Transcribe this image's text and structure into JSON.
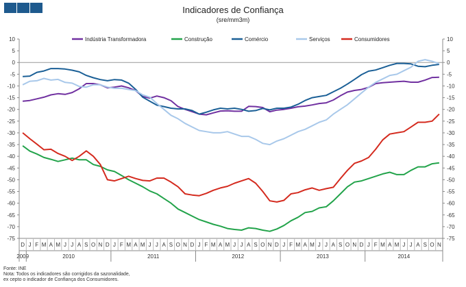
{
  "header": {
    "title": "Indicadores de Confiança",
    "subtitle": "(sre/mm3m)"
  },
  "footer": {
    "source": "Fonte: INE",
    "note_line1": "Nota: Todos os indicadores são corrigidos da sazonalidade,",
    "note_line2": "ex cepto o indicador de Confiança dos Consumidores."
  },
  "chart_data": {
    "type": "line",
    "title": "Indicadores de Confiança",
    "subtitle": "(sre/mm3m)",
    "ylim": [
      -75,
      10
    ],
    "yticks": [
      10,
      5,
      0,
      -5,
      -10,
      -15,
      -20,
      -25,
      -30,
      -35,
      -40,
      -45,
      -50,
      -55,
      -60,
      -65,
      -70,
      -75
    ],
    "grid": false,
    "legend_position": "top",
    "months": [
      "D",
      "J",
      "F",
      "M",
      "A",
      "M",
      "J",
      "J",
      "A",
      "S",
      "O",
      "N",
      "D",
      "J",
      "F",
      "M",
      "A",
      "M",
      "J",
      "J",
      "A",
      "S",
      "O",
      "N",
      "D",
      "J",
      "F",
      "M",
      "A",
      "M",
      "J",
      "J",
      "A",
      "S",
      "O",
      "N",
      "D",
      "J",
      "F",
      "M",
      "A",
      "M",
      "J",
      "J",
      "A",
      "S",
      "O",
      "N",
      "D",
      "J",
      "F",
      "M",
      "A",
      "M",
      "J",
      "J",
      "A",
      "S",
      "O",
      "N"
    ],
    "years": [
      {
        "label": "2009",
        "start": 0,
        "end": 0
      },
      {
        "label": "2010",
        "start": 1,
        "end": 12
      },
      {
        "label": "2011",
        "start": 13,
        "end": 24
      },
      {
        "label": "2012",
        "start": 25,
        "end": 36
      },
      {
        "label": "2013",
        "start": 37,
        "end": 48
      },
      {
        "label": "2014",
        "start": 49,
        "end": 59
      }
    ],
    "series": [
      {
        "name": "Indústria Transformadora",
        "color": "#7030a0",
        "values": [
          -16.5,
          -16.2,
          -15.5,
          -14.8,
          -13.8,
          -13.3,
          -13.6,
          -12.8,
          -11.2,
          -9.0,
          -9.0,
          -9.5,
          -10.8,
          -10.5,
          -10.0,
          -10.8,
          -12.0,
          -14.5,
          -15.2,
          -14.3,
          -15.0,
          -16.3,
          -18.8,
          -20.0,
          -21.0,
          -22.0,
          -22.3,
          -21.5,
          -20.7,
          -20.6,
          -20.8,
          -20.8,
          -18.7,
          -18.8,
          -19.2,
          -21.0,
          -20.3,
          -20.0,
          -19.5,
          -18.9,
          -18.6,
          -18.1,
          -17.5,
          -17.2,
          -16.0,
          -14.2,
          -12.6,
          -11.9,
          -11.5,
          -10.6,
          -9.0,
          -8.6,
          -8.4,
          -8.2,
          -8.0,
          -8.4,
          -8.4,
          -7.5,
          -6.4,
          -6.3
        ]
      },
      {
        "name": "Construção",
        "color": "#22a34a",
        "values": [
          -35.5,
          -37.8,
          -39.0,
          -40.5,
          -41.3,
          -42.2,
          -41.5,
          -40.8,
          -41.5,
          -41.5,
          -43.5,
          -44.3,
          -45.8,
          -46.5,
          -48.2,
          -50.0,
          -51.5,
          -53.0,
          -54.8,
          -56.0,
          -58.0,
          -60.0,
          -62.5,
          -64.0,
          -65.5,
          -67.0,
          -68.0,
          -69.0,
          -69.8,
          -70.8,
          -71.2,
          -71.5,
          -70.5,
          -70.8,
          -71.5,
          -72.0,
          -71.0,
          -69.5,
          -67.5,
          -66.0,
          -64.0,
          -63.5,
          -62.0,
          -61.5,
          -59.0,
          -56.0,
          -53.0,
          -51.0,
          -50.5,
          -49.5,
          -48.5,
          -47.5,
          -46.8,
          -47.8,
          -47.8,
          -46.0,
          -44.5,
          -44.5,
          -43.2,
          -42.8
        ]
      },
      {
        "name": "Comércio",
        "color": "#1a5f96",
        "values": [
          -6.0,
          -5.8,
          -4.2,
          -3.6,
          -2.6,
          -2.6,
          -2.8,
          -3.3,
          -4.0,
          -5.5,
          -6.5,
          -7.3,
          -7.8,
          -7.3,
          -7.5,
          -8.8,
          -11.5,
          -14.8,
          -16.5,
          -18.2,
          -18.8,
          -19.5,
          -19.8,
          -19.8,
          -20.5,
          -22.0,
          -21.2,
          -20.2,
          -19.5,
          -19.8,
          -19.5,
          -20.0,
          -20.8,
          -20.5,
          -19.6,
          -20.2,
          -19.5,
          -19.5,
          -19.0,
          -17.8,
          -16.2,
          -15.0,
          -14.5,
          -14.0,
          -12.5,
          -11.0,
          -9.2,
          -7.2,
          -5.2,
          -3.7,
          -3.2,
          -2.2,
          -1.2,
          -0.4,
          -0.4,
          -0.6,
          -1.6,
          -1.8,
          -1.2,
          -0.8
        ]
      },
      {
        "name": "Serviços",
        "color": "#a8c8ea",
        "values": [
          -9.5,
          -8.0,
          -7.8,
          -6.8,
          -7.5,
          -7.2,
          -8.5,
          -8.8,
          -10.2,
          -10.5,
          -9.5,
          -9.5,
          -10.5,
          -11.0,
          -11.0,
          -11.5,
          -12.0,
          -13.8,
          -14.8,
          -17.5,
          -20.0,
          -22.5,
          -24.0,
          -26.0,
          -27.5,
          -29.0,
          -29.5,
          -30.0,
          -30.0,
          -29.5,
          -30.5,
          -31.5,
          -31.5,
          -32.8,
          -34.5,
          -35.0,
          -33.5,
          -32.5,
          -31.0,
          -29.5,
          -28.5,
          -27.0,
          -25.5,
          -24.5,
          -22.0,
          -20.0,
          -18.0,
          -15.5,
          -13.0,
          -10.5,
          -8.5,
          -7.0,
          -5.5,
          -5.0,
          -3.5,
          -2.0,
          0.5,
          1.2,
          0.5,
          -0.5
        ]
      },
      {
        "name": "Consumidores",
        "color": "#d42a1e",
        "values": [
          -30.0,
          -32.5,
          -34.8,
          -37.2,
          -37.0,
          -38.8,
          -40.0,
          -41.8,
          -40.0,
          -37.7,
          -40.0,
          -43.5,
          -50.0,
          -50.5,
          -49.5,
          -48.5,
          -49.5,
          -50.3,
          -50.5,
          -49.3,
          -49.3,
          -51.0,
          -53.0,
          -56.0,
          -56.5,
          -56.8,
          -55.8,
          -54.5,
          -53.5,
          -52.8,
          -51.5,
          -50.5,
          -49.5,
          -51.5,
          -55.0,
          -59.0,
          -59.5,
          -58.8,
          -56.0,
          -55.5,
          -54.3,
          -53.5,
          -54.5,
          -53.8,
          -53.2,
          -49.5,
          -46.0,
          -43.0,
          -42.0,
          -40.5,
          -37.0,
          -33.0,
          -30.5,
          -30.0,
          -29.5,
          -27.5,
          -25.5,
          -25.5,
          -25.0,
          -22.0
        ]
      }
    ]
  }
}
